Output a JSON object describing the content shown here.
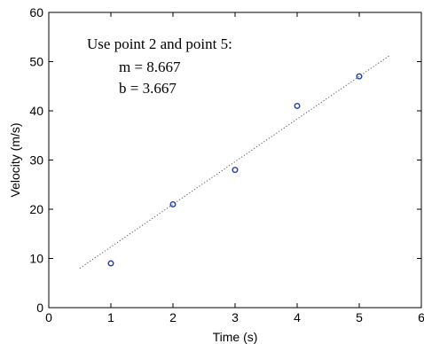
{
  "chart_data": {
    "type": "scatter",
    "title": "",
    "xlabel": "Time (s)",
    "ylabel": "Velocity  (m/s)",
    "xlim": [
      0,
      6
    ],
    "ylim": [
      0,
      60
    ],
    "xticks": [
      0,
      1,
      2,
      3,
      4,
      5,
      6
    ],
    "yticks": [
      0,
      10,
      20,
      30,
      40,
      50,
      60
    ],
    "grid": false,
    "series": [
      {
        "type": "scatter",
        "marker": "circle-open",
        "color": "#1f3fa6",
        "points": [
          {
            "x": 1,
            "y": 9
          },
          {
            "x": 2,
            "y": 21
          },
          {
            "x": 3,
            "y": 28
          },
          {
            "x": 4,
            "y": 41
          },
          {
            "x": 5,
            "y": 47
          }
        ]
      },
      {
        "type": "line",
        "style": "dotted",
        "color": "#555555",
        "slope": 8.667,
        "intercept": 3.667,
        "x_range": [
          0.5,
          5.5
        ]
      }
    ],
    "annotation": {
      "line1": "Use point 2 and point 5:",
      "line2": "m = 8.667",
      "line3": "b = 3.667"
    }
  }
}
